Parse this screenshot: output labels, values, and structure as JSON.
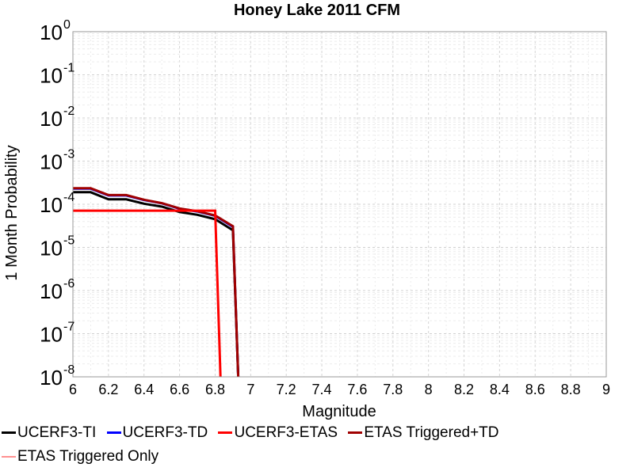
{
  "chart_data": {
    "type": "line",
    "title": "Honey Lake 2011 CFM",
    "xlabel": "Magnitude",
    "ylabel": "1 Month Probability",
    "xlim": [
      6,
      9
    ],
    "ylim": [
      1e-08,
      1
    ],
    "yscale": "log",
    "grid": true,
    "legend_position": "bottom",
    "x_ticks": [
      "6",
      "6.2",
      "6.4",
      "6.6",
      "6.8",
      "7",
      "7.2",
      "7.4",
      "7.6",
      "7.8",
      "8",
      "8.2",
      "8.4",
      "8.6",
      "8.8",
      "9"
    ],
    "y_ticks": [
      {
        "mantissa": "10",
        "exp": "0"
      },
      {
        "mantissa": "10",
        "exp": "-1"
      },
      {
        "mantissa": "10",
        "exp": "-2"
      },
      {
        "mantissa": "10",
        "exp": "-3"
      },
      {
        "mantissa": "10",
        "exp": "-4"
      },
      {
        "mantissa": "10",
        "exp": "-5"
      },
      {
        "mantissa": "10",
        "exp": "-6"
      },
      {
        "mantissa": "10",
        "exp": "-7"
      },
      {
        "mantissa": "10",
        "exp": "-8"
      }
    ],
    "series": [
      {
        "name": "UCERF3-TI",
        "color": "#000000",
        "x": [
          6.0,
          6.1,
          6.2,
          6.3,
          6.4,
          6.5,
          6.6,
          6.7,
          6.8,
          6.9,
          6.93
        ],
        "y": [
          0.00019,
          0.00019,
          0.00013,
          0.00013,
          0.000103,
          8.8e-05,
          6.6e-05,
          5.7e-05,
          4.5e-05,
          2.5e-05,
          5e-09
        ]
      },
      {
        "name": "UCERF3-TD",
        "color": "#0000ff",
        "x": [
          6.0,
          6.1,
          6.2,
          6.3,
          6.4,
          6.5,
          6.6,
          6.7,
          6.8,
          6.9,
          6.93
        ],
        "y": [
          0.00023,
          0.00023,
          0.00016,
          0.00016,
          0.000125,
          0.000105,
          7.9e-05,
          6.8e-05,
          5.4e-05,
          3e-05,
          5e-09
        ]
      },
      {
        "name": "UCERF3-ETAS",
        "color": "#ff0000",
        "x": [
          6.0,
          6.8,
          6.83
        ],
        "y": [
          7.1e-05,
          7.1e-05,
          5e-09
        ]
      },
      {
        "name": "ETAS Triggered+TD",
        "color": "#a00000",
        "x": [
          6.0,
          6.1,
          6.2,
          6.3,
          6.4,
          6.5,
          6.6,
          6.7,
          6.8,
          6.9,
          6.93
        ],
        "y": [
          0.000235,
          0.000235,
          0.000163,
          0.000163,
          0.000127,
          0.000106,
          8e-05,
          6.9e-05,
          5.5e-05,
          3.1e-05,
          5e-09
        ]
      },
      {
        "name": "ETAS Triggered Only",
        "color": "#ff9090",
        "x": [],
        "y": []
      }
    ]
  }
}
